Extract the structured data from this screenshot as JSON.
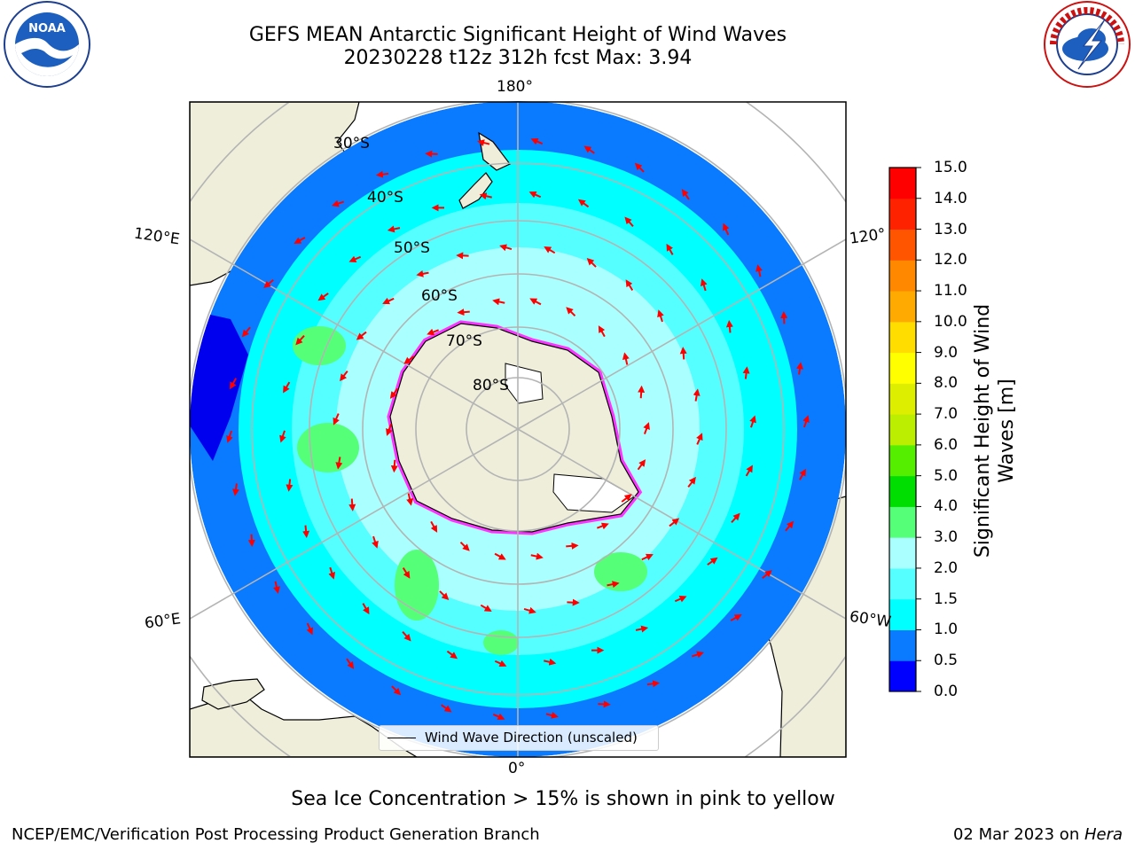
{
  "header": {
    "title_line1": "GEFS MEAN Antarctic Significant Height of Wind Waves",
    "title_line2": "20230228 t12z 312h fcst   Max: 3.94"
  },
  "logos": {
    "left": {
      "icon": "noaa-logo",
      "text": "NOAA"
    },
    "right": {
      "icon": "nws-logo",
      "text": "NATIONAL WEATHER SERVICE"
    }
  },
  "map": {
    "projection": "south-polar-stereographic",
    "longitude_labels": {
      "top": "180°",
      "bottom": "0°",
      "upper_left": "120°E",
      "upper_right": "120°",
      "lower_left": "60°E",
      "lower_right": "60°W"
    },
    "latitude_labels": [
      "30°S",
      "40°S",
      "50°S",
      "60°S",
      "70°S",
      "80°S"
    ],
    "legend": {
      "label": "Wind Wave Direction (unscaled)"
    },
    "colors": {
      "land": "#efeedb",
      "ice_contour": "#ff33ff",
      "arrow": "#ff0000",
      "grid": "#b4b4b4"
    }
  },
  "colorbar": {
    "title": "Significant Height of Wind Waves [m]",
    "ticks": [
      "0.0",
      "0.5",
      "1.0",
      "1.5",
      "2.0",
      "3.0",
      "4.0",
      "5.0",
      "6.0",
      "7.0",
      "8.0",
      "9.0",
      "10.0",
      "11.0",
      "12.0",
      "13.0",
      "14.0",
      "15.0"
    ],
    "colors": [
      "#0000ff",
      "#0a7aff",
      "#00ffff",
      "#55ffff",
      "#aaffff",
      "#55ff77",
      "#00dd00",
      "#55ee00",
      "#bbee00",
      "#ddee00",
      "#ffff00",
      "#ffdd00",
      "#ffaa00",
      "#ff8800",
      "#ff5500",
      "#ff2200",
      "#ff0000"
    ]
  },
  "footer": {
    "note": "Sea Ice Concentration > 15% is shown in pink to yellow",
    "left": "NCEP/EMC/Verification Post Processing Product Generation Branch",
    "right_prefix": "02 Mar 2023 on ",
    "right_host": "Hera"
  }
}
